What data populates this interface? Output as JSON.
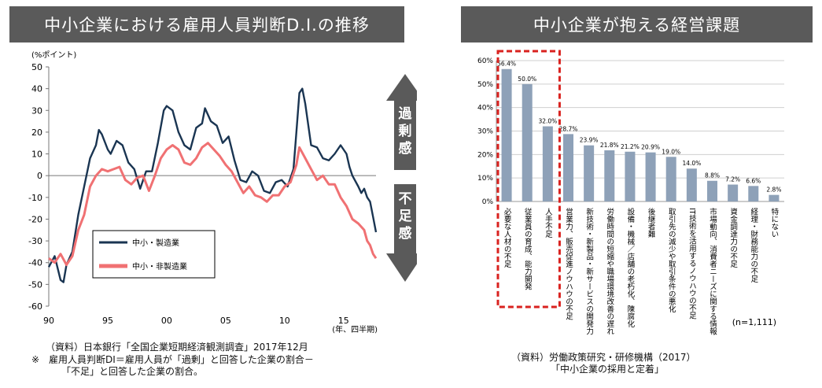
{
  "left_title": "中小企業における雇用人員判断D.I.の推移",
  "right_title": "中小企業が抱える経営課題",
  "left_notes": {
    "source": "（資料）日本銀行「全国企業短期経済観測調査」2017年12月",
    "note_line1": "※　雇用人員判断DI＝雇用人員が「過剰」と回答した企業の割合－",
    "note_line2": "「不足」と回答した企業の割合。"
  },
  "right_notes": {
    "source_line1": "（資料）労働政策研究・研修機構（2017）",
    "source_line2": "「中小企業の採用と定着」"
  },
  "arrows": {
    "up": "過剰感",
    "down": "不足感"
  },
  "colors": {
    "manufacturing": "#1a3552",
    "non_manufacturing": "#f07173",
    "bar": "#8ea1b8",
    "highlight": "#d9221f",
    "banner": "#5a5a5a"
  },
  "chart_data": [
    {
      "type": "line",
      "ylabel": "(%ポイント)",
      "xlabel": "(年、四半期)",
      "ylim": [
        -60,
        50
      ],
      "yticks": [
        50,
        40,
        30,
        20,
        10,
        0,
        -10,
        -20,
        -30,
        -40,
        -50,
        -60
      ],
      "xlim": [
        1990.0,
        2017.75
      ],
      "xticks": [
        {
          "x": 1990,
          "label": "90"
        },
        {
          "x": 1995,
          "label": "95"
        },
        {
          "x": 2000,
          "label": "00"
        },
        {
          "x": 2005,
          "label": "05"
        },
        {
          "x": 2010,
          "label": "10"
        },
        {
          "x": 2015,
          "label": "15"
        }
      ],
      "grid": false,
      "legend": "lower-left",
      "series": [
        {
          "name": "中小・製造業",
          "color": "#1a3552",
          "points": [
            [
              1990.0,
              -42
            ],
            [
              1990.5,
              -37
            ],
            [
              1991.0,
              -48
            ],
            [
              1991.25,
              -49
            ],
            [
              1991.5,
              -41
            ],
            [
              1992.0,
              -35
            ],
            [
              1992.5,
              -18
            ],
            [
              1993.0,
              -5
            ],
            [
              1993.5,
              8
            ],
            [
              1994.0,
              14
            ],
            [
              1994.25,
              21
            ],
            [
              1994.5,
              19
            ],
            [
              1995.0,
              12
            ],
            [
              1995.25,
              10
            ],
            [
              1995.75,
              16
            ],
            [
              1996.25,
              14
            ],
            [
              1996.75,
              6
            ],
            [
              1997.25,
              3
            ],
            [
              1997.75,
              -6
            ],
            [
              1998.25,
              2
            ],
            [
              1998.75,
              2
            ],
            [
              1999.25,
              15
            ],
            [
              1999.75,
              30
            ],
            [
              2000.0,
              32
            ],
            [
              2000.5,
              30
            ],
            [
              2001.0,
              20
            ],
            [
              2001.5,
              14
            ],
            [
              2002.0,
              12
            ],
            [
              2002.5,
              22
            ],
            [
              2003.0,
              24
            ],
            [
              2003.25,
              31
            ],
            [
              2003.75,
              25
            ],
            [
              2004.25,
              23
            ],
            [
              2004.75,
              15
            ],
            [
              2005.25,
              18
            ],
            [
              2005.75,
              7
            ],
            [
              2006.25,
              -2
            ],
            [
              2006.75,
              -3
            ],
            [
              2007.25,
              2
            ],
            [
              2007.75,
              0
            ],
            [
              2008.25,
              -7
            ],
            [
              2008.75,
              -8
            ],
            [
              2009.25,
              -3
            ],
            [
              2009.75,
              -2
            ],
            [
              2010.25,
              -5
            ],
            [
              2010.75,
              3
            ],
            [
              2011.0,
              20
            ],
            [
              2011.25,
              38
            ],
            [
              2011.5,
              40
            ],
            [
              2011.75,
              33
            ],
            [
              2012.25,
              14
            ],
            [
              2012.75,
              13
            ],
            [
              2013.25,
              8
            ],
            [
              2013.75,
              7
            ],
            [
              2014.25,
              10
            ],
            [
              2014.75,
              14
            ],
            [
              2015.25,
              10
            ],
            [
              2015.5,
              4
            ],
            [
              2015.75,
              0
            ],
            [
              2016.25,
              -5
            ],
            [
              2016.5,
              -8
            ],
            [
              2016.75,
              -6
            ],
            [
              2017.0,
              -10
            ],
            [
              2017.25,
              -12
            ],
            [
              2017.5,
              -19
            ],
            [
              2017.75,
              -26
            ]
          ]
        },
        {
          "name": "中小・非製造業",
          "color": "#f07173",
          "points": [
            [
              1990.0,
              -38
            ],
            [
              1990.5,
              -40
            ],
            [
              1991.0,
              -36
            ],
            [
              1991.5,
              -41
            ],
            [
              1992.0,
              -37
            ],
            [
              1992.5,
              -25
            ],
            [
              1993.0,
              -18
            ],
            [
              1993.5,
              -5
            ],
            [
              1994.0,
              0
            ],
            [
              1994.5,
              3
            ],
            [
              1995.0,
              2
            ],
            [
              1995.5,
              3
            ],
            [
              1996.0,
              4
            ],
            [
              1996.5,
              -2
            ],
            [
              1997.0,
              -4
            ],
            [
              1997.5,
              -1
            ],
            [
              1998.0,
              0
            ],
            [
              1998.5,
              -7
            ],
            [
              1999.0,
              0
            ],
            [
              1999.5,
              8
            ],
            [
              2000.0,
              12
            ],
            [
              2000.5,
              14
            ],
            [
              2001.0,
              12
            ],
            [
              2001.5,
              6
            ],
            [
              2002.0,
              5
            ],
            [
              2002.5,
              8
            ],
            [
              2003.0,
              13
            ],
            [
              2003.5,
              15
            ],
            [
              2004.0,
              12
            ],
            [
              2004.5,
              9
            ],
            [
              2005.0,
              5
            ],
            [
              2005.5,
              2
            ],
            [
              2006.0,
              -3
            ],
            [
              2006.5,
              -8
            ],
            [
              2007.0,
              -5
            ],
            [
              2007.5,
              -9
            ],
            [
              2008.0,
              -10
            ],
            [
              2008.5,
              -12
            ],
            [
              2009.0,
              -9
            ],
            [
              2009.5,
              -9
            ],
            [
              2010.0,
              -5
            ],
            [
              2010.5,
              -3
            ],
            [
              2011.0,
              5
            ],
            [
              2011.25,
              13
            ],
            [
              2011.75,
              8
            ],
            [
              2012.25,
              3
            ],
            [
              2012.75,
              -2
            ],
            [
              2013.25,
              0
            ],
            [
              2013.75,
              -4
            ],
            [
              2014.25,
              -4
            ],
            [
              2014.75,
              -10
            ],
            [
              2015.25,
              -14
            ],
            [
              2015.75,
              -20
            ],
            [
              2016.25,
              -22
            ],
            [
              2016.75,
              -25
            ],
            [
              2017.0,
              -30
            ],
            [
              2017.25,
              -32
            ],
            [
              2017.5,
              -36
            ],
            [
              2017.75,
              -38
            ]
          ]
        }
      ]
    },
    {
      "type": "bar",
      "n_label": "(n=1,111)",
      "ylim": [
        0,
        60
      ],
      "yticks": [
        "60%",
        "50%",
        "40%",
        "30%",
        "20%",
        "10%",
        "0%"
      ],
      "grid": true,
      "categories": [
        "必要な人材の不足",
        "従業員の育成、能力開発",
        "人手不足",
        "営業力、販売促進ノウハウの不足",
        "新技術・新製品・新サービスの開発力",
        "労働時間の短縮や職場環境改善の遅れ",
        "設備・機械／店舗の老朽化、陳腐化",
        "後継者難",
        "取引先の減少や取引条件の悪化",
        "IT技術を活用するノウハウの不足",
        "市場動向、消費者ニーズに関する情報",
        "資金調達力の不足",
        "経理・財務能力の不足",
        "特にない"
      ],
      "values": [
        56.4,
        50.0,
        32.0,
        28.7,
        23.9,
        21.8,
        21.2,
        20.9,
        19.0,
        14.0,
        8.8,
        7.2,
        6.6,
        2.8
      ],
      "value_labels": [
        "56.4%",
        "50.0%",
        "32.0%",
        "28.7%",
        "23.9%",
        "21.8%",
        "21.2%",
        "20.9%",
        "19.0%",
        "14.0%",
        "8.8%",
        "7.2%",
        "6.6%",
        "2.8%"
      ],
      "highlighted": [
        0,
        1,
        2
      ]
    }
  ]
}
